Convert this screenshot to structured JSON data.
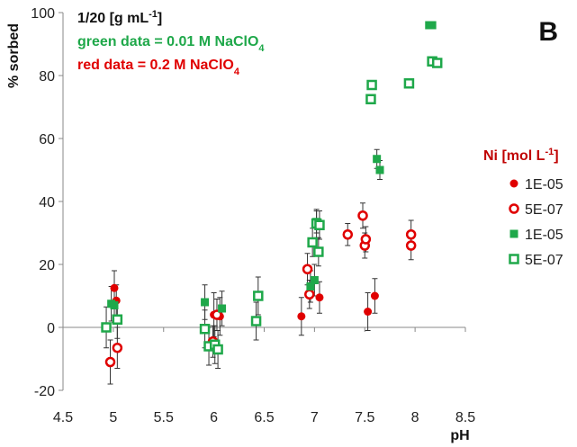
{
  "chart_data": {
    "type": "scatter",
    "panel_label": "B",
    "xlabel": "pH",
    "ylabel": "% sorbed",
    "xlim": [
      4.5,
      8.5
    ],
    "ylim": [
      -20,
      100
    ],
    "xticks": [
      "4.5",
      "5",
      "5.5",
      "6",
      "6.5",
      "7",
      "7.5",
      "8",
      "8.5"
    ],
    "yticks": [
      "-20",
      "0",
      "20",
      "40",
      "60",
      "80",
      "100"
    ],
    "annotations": {
      "ratio": {
        "prefix": "1/20 [g mL",
        "sup": "-1",
        "suffix": "]"
      },
      "green": {
        "text": "green data = 0.01 M NaClO",
        "sub": "4"
      },
      "red": {
        "text": "red data = 0.2 M NaClO",
        "sub": "4"
      }
    },
    "legend": {
      "title": {
        "prefix": "Ni [mol L",
        "sup": "-1",
        "suffix": "]"
      },
      "placement": "right"
    },
    "colors": {
      "red": "#e00000",
      "green": "#1fa84a",
      "axis": "#888888",
      "error": "#333333"
    },
    "series": [
      {
        "name": "1E-05",
        "color": "red",
        "marker": "filled-circle",
        "points": [
          {
            "x": 5.01,
            "y": 12.5,
            "err": 5.5
          },
          {
            "x": 5.03,
            "y": 8.5,
            "err": 5
          },
          {
            "x": 6.0,
            "y": 4,
            "err": 7
          },
          {
            "x": 6.06,
            "y": 3.5,
            "err": 6
          },
          {
            "x": 6.87,
            "y": 3.5,
            "err": 6
          },
          {
            "x": 7.05,
            "y": 9.5,
            "err": 5
          },
          {
            "x": 7.53,
            "y": 5,
            "err": 6
          },
          {
            "x": 7.6,
            "y": 10,
            "err": 5.5
          }
        ]
      },
      {
        "name": "5E-07",
        "color": "red",
        "marker": "open-circle",
        "points": [
          {
            "x": 4.97,
            "y": -11,
            "err": 7
          },
          {
            "x": 5.04,
            "y": -6.5,
            "err": 6.5
          },
          {
            "x": 5.99,
            "y": -4.5,
            "err": 5
          },
          {
            "x": 6.03,
            "y": 4,
            "err": 5
          },
          {
            "x": 6.93,
            "y": 18.5,
            "err": 5
          },
          {
            "x": 6.95,
            "y": 10.5,
            "err": 4.5
          },
          {
            "x": 7.33,
            "y": 29.5,
            "err": 3.5
          },
          {
            "x": 7.48,
            "y": 35.5,
            "err": 4
          },
          {
            "x": 7.5,
            "y": 26,
            "err": 4
          },
          {
            "x": 7.51,
            "y": 28,
            "err": 4
          },
          {
            "x": 7.96,
            "y": 29.5,
            "err": 4.5
          },
          {
            "x": 7.96,
            "y": 26,
            "err": 4.5
          }
        ]
      },
      {
        "name": "1E-05",
        "color": "green",
        "marker": "filled-square",
        "points": [
          {
            "x": 4.98,
            "y": 7.5,
            "err": 5.5
          },
          {
            "x": 5.01,
            "y": 7,
            "err": 5.5
          },
          {
            "x": 5.91,
            "y": 8,
            "err": 5.5
          },
          {
            "x": 6.08,
            "y": 6,
            "err": 5.5
          },
          {
            "x": 6.96,
            "y": 13,
            "err": 5
          },
          {
            "x": 7.0,
            "y": 15,
            "err": 5
          },
          {
            "x": 7.02,
            "y": 33.5,
            "err": 3.5
          },
          {
            "x": 7.62,
            "y": 53.5,
            "err": 3
          },
          {
            "x": 7.65,
            "y": 50,
            "err": 3
          },
          {
            "x": 8.14,
            "y": 96,
            "err": 0
          },
          {
            "x": 8.17,
            "y": 96,
            "err": 0
          }
        ]
      },
      {
        "name": "5E-07",
        "color": "green",
        "marker": "open-square",
        "points": [
          {
            "x": 4.93,
            "y": 0,
            "err": 6.5
          },
          {
            "x": 5.04,
            "y": 2.5,
            "err": 6
          },
          {
            "x": 5.91,
            "y": -0.5,
            "err": 6
          },
          {
            "x": 5.95,
            "y": -6,
            "err": 6
          },
          {
            "x": 6.01,
            "y": -5.5,
            "err": 6
          },
          {
            "x": 6.04,
            "y": -7,
            "err": 6
          },
          {
            "x": 6.42,
            "y": 2,
            "err": 6
          },
          {
            "x": 6.44,
            "y": 10,
            "err": 6
          },
          {
            "x": 6.98,
            "y": 27,
            "err": 4.5
          },
          {
            "x": 7.02,
            "y": 33,
            "err": 4.5
          },
          {
            "x": 7.04,
            "y": 24,
            "err": 4.5
          },
          {
            "x": 7.05,
            "y": 32.5,
            "err": 4.5
          },
          {
            "x": 7.56,
            "y": 72.5,
            "err": 0
          },
          {
            "x": 7.57,
            "y": 77,
            "err": 0
          },
          {
            "x": 7.94,
            "y": 77.5,
            "err": 0
          },
          {
            "x": 8.17,
            "y": 84.5,
            "err": 0
          },
          {
            "x": 8.22,
            "y": 84,
            "err": 0
          }
        ]
      }
    ]
  }
}
